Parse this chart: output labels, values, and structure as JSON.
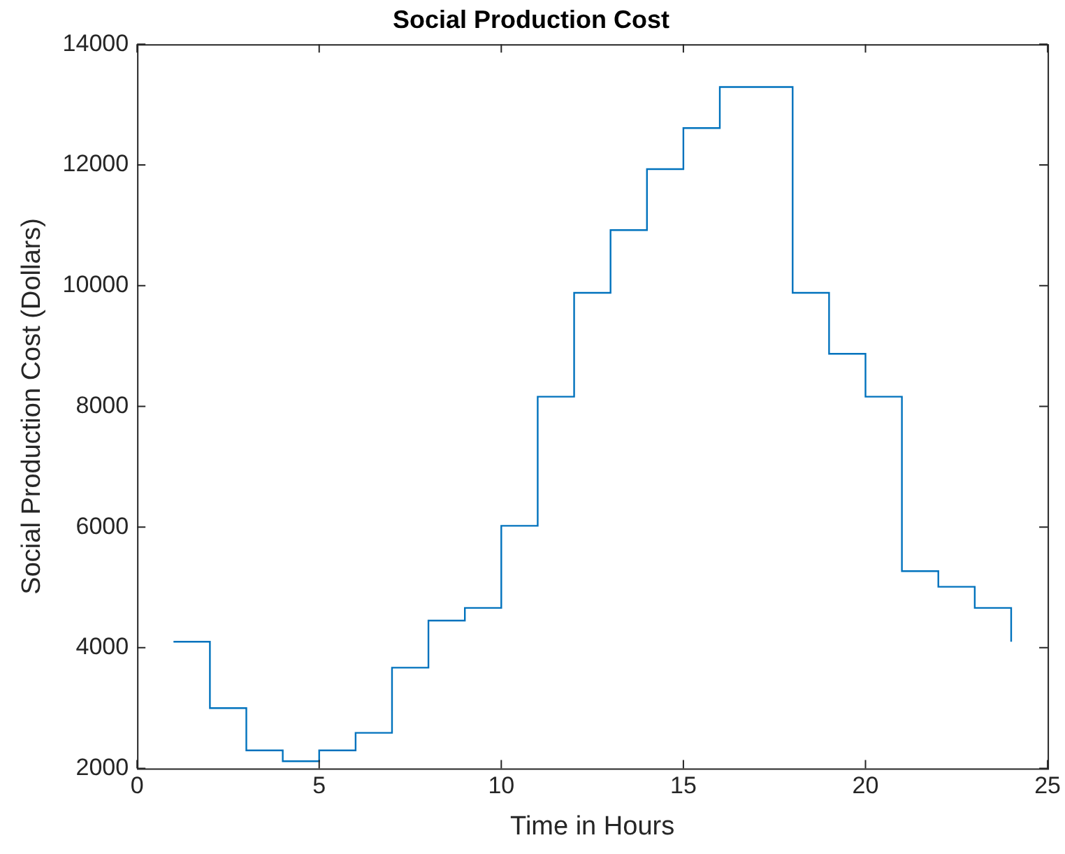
{
  "chart_data": {
    "type": "step",
    "title": "Social Production Cost",
    "xlabel": "Time in Hours",
    "ylabel": "Social Production Cost (Dollars)",
    "x": [
      1,
      2,
      3,
      4,
      5,
      6,
      7,
      8,
      9,
      10,
      11,
      12,
      13,
      14,
      15,
      16,
      17,
      18,
      19,
      20,
      21,
      22,
      23,
      24
    ],
    "series": [
      {
        "color": "#0072bd",
        "values": [
          4100,
          3000,
          2300,
          2120,
          2300,
          2590,
          3670,
          4450,
          4660,
          6020,
          8160,
          9880,
          10920,
          11930,
          12610,
          13290,
          13290,
          9880,
          8870,
          8160,
          5270,
          5010,
          4660,
          4100
        ]
      }
    ],
    "xlim": [
      0,
      25
    ],
    "xticks": [
      0,
      5,
      10,
      15,
      20,
      25
    ],
    "ylim": [
      2000,
      14000
    ],
    "yticks": [
      2000,
      4000,
      6000,
      8000,
      10000,
      12000,
      14000
    ],
    "grid": false,
    "legend": false
  }
}
